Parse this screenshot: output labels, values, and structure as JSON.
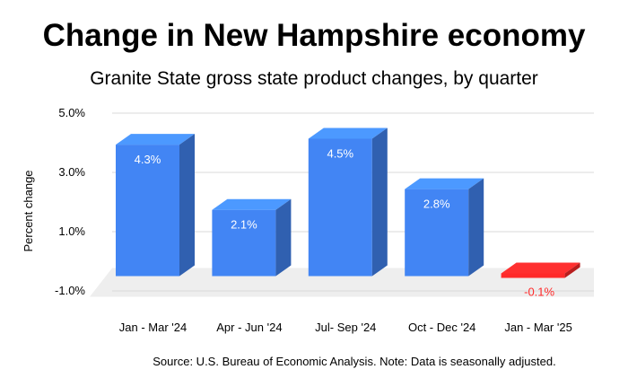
{
  "chart_data": {
    "type": "bar",
    "title": "Change in New Hampshire economy",
    "subtitle": "Granite State gross state product changes,  by quarter",
    "ylabel": "Percent change",
    "xlabel": "",
    "categories": [
      "Jan - Mar '24",
      "Apr - Jun '24",
      "Jul- Sep '24",
      "Oct - Dec '24",
      "Jan - Mar '25"
    ],
    "values": [
      4.3,
      2.1,
      4.5,
      2.8,
      -0.1
    ],
    "data_labels": [
      "4.3%",
      "2.1%",
      "4.5%",
      "2.8%",
      "-0.1%"
    ],
    "ylim": [
      -1.0,
      5.0
    ],
    "yticks": [
      -1.0,
      1.0,
      3.0,
      5.0
    ],
    "ytick_labels": [
      "-1.0%",
      "1.0%",
      "3.0%",
      "5.0%"
    ],
    "grid": true,
    "style": "3d",
    "colors": {
      "positive": "#4285f4",
      "negative": "#ff2a2a",
      "grid": "#d9d9d9",
      "floor": "#eeeeee"
    }
  },
  "source_note": "Source: U.S. Bureau of Economic Analysis. Note: Data is seasonally adjusted."
}
